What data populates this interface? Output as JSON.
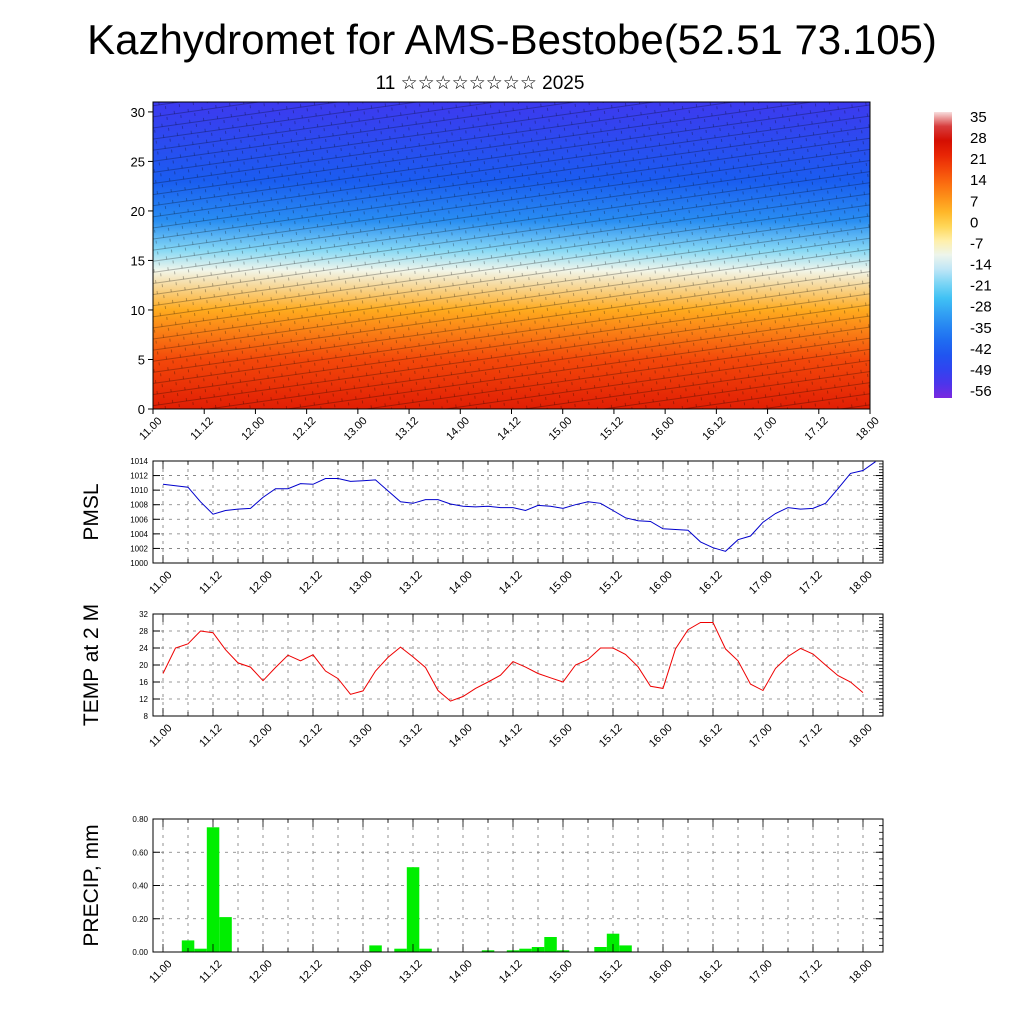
{
  "title": "Kazhydromet for AMS-Bestobe(52.51 73.105)",
  "subtitle": "11 ☆☆☆☆☆☆☆☆ 2025",
  "time_labels": [
    "11.00",
    "11.12",
    "12.00",
    "12.12",
    "13.00",
    "13.12",
    "14.00",
    "14.12",
    "15.00",
    "15.12",
    "16.00",
    "16.12",
    "17.00",
    "17.12",
    "18.00"
  ],
  "chart_data": [
    {
      "type": "heatmap",
      "title": "",
      "xlabel": "",
      "ylabel": "",
      "ylim": [
        0,
        31
      ],
      "yticks": [
        0,
        5,
        10,
        15,
        20,
        25,
        30
      ],
      "colorbar_labels": [
        "35",
        "28",
        "21",
        "14",
        "7",
        "0",
        "-7",
        "-14",
        "-21",
        "-28",
        "-35",
        "-42",
        "-49",
        "-56"
      ],
      "colorbar_range": [
        -63,
        42
      ],
      "colors": {
        "warm": "#d90000",
        "mid": "#ffffff",
        "cold": "#2222cc"
      },
      "temperature_profile": [
        {
          "height": 0,
          "value": 28
        },
        {
          "height": 5,
          "value": 21
        },
        {
          "height": 10,
          "value": 7
        },
        {
          "height": 14,
          "value": -10
        },
        {
          "height": 16,
          "value": -20
        },
        {
          "height": 19,
          "value": -35
        },
        {
          "height": 23,
          "value": -45
        },
        {
          "height": 31,
          "value": -56
        }
      ],
      "overlay": "wind barbs"
    },
    {
      "type": "line",
      "ylabel": "PMSL",
      "ylim": [
        1000,
        1014
      ],
      "yticks": [
        1000,
        1002,
        1004,
        1006,
        1008,
        1010,
        1012,
        1014
      ],
      "color": "#0000cc",
      "x_start": 0.0,
      "x_step": 0.125,
      "values": [
        1010.8,
        1010.6,
        1010.4,
        1008.4,
        1006.7,
        1007.2,
        1007.4,
        1007.5,
        1009.0,
        1010.2,
        1010.2,
        1010.9,
        1010.8,
        1011.6,
        1011.6,
        1011.2,
        1011.3,
        1011.4,
        1009.9,
        1008.4,
        1008.2,
        1008.7,
        1008.7,
        1008.1,
        1007.8,
        1007.7,
        1007.8,
        1007.6,
        1007.6,
        1007.2,
        1007.9,
        1007.8,
        1007.5,
        1008.0,
        1008.4,
        1008.2,
        1007.2,
        1006.2,
        1005.8,
        1005.7,
        1004.7,
        1004.6,
        1004.5,
        1002.9,
        1002.1,
        1001.6,
        1003.2,
        1003.7,
        1005.6,
        1006.8,
        1007.6,
        1007.4,
        1007.5,
        1008.2,
        1010.2,
        1012.3,
        1012.7,
        1013.9
      ]
    },
    {
      "type": "line",
      "ylabel": "TEMP at 2 M",
      "ylim": [
        8,
        32
      ],
      "yticks": [
        8,
        12,
        16,
        20,
        24,
        28,
        32
      ],
      "color": "#ee0000",
      "x_start": 0.0,
      "x_step": 0.125,
      "values": [
        18.0,
        24.0,
        25.0,
        28.0,
        27.6,
        23.6,
        20.5,
        19.5,
        16.3,
        19.4,
        22.3,
        21.0,
        22.4,
        18.6,
        16.8,
        13.1,
        13.9,
        18.6,
        21.8,
        24.2,
        21.9,
        19.4,
        14.0,
        11.5,
        12.6,
        14.5,
        16.0,
        17.6,
        20.8,
        19.5,
        18.0,
        17.0,
        16.0,
        20.0,
        21.3,
        24.0,
        24.0,
        22.5,
        19.6,
        15.0,
        14.5,
        23.8,
        28.3,
        30.0,
        30.0,
        23.8,
        21.0,
        15.5,
        14.0,
        19.2,
        22.0,
        23.9,
        22.6,
        20.0,
        17.5,
        16.0,
        13.5
      ]
    },
    {
      "type": "bar",
      "ylabel": "PRECIP, mm",
      "ylim": [
        0,
        0.8
      ],
      "yticks": [
        "0.00",
        "0.20",
        "0.40",
        "0.60",
        "0.80"
      ],
      "color": "#00ee00",
      "x_start": 0.125,
      "x_step": 0.125,
      "values": [
        0,
        0.07,
        0.02,
        0.75,
        0.21,
        0,
        0,
        0,
        0,
        0,
        0,
        0,
        0,
        0,
        0,
        0,
        0.04,
        0,
        0.02,
        0.51,
        0.02,
        0,
        0,
        0,
        0,
        0.01,
        0,
        0.01,
        0.02,
        0.03,
        0.09,
        0.01,
        0,
        0,
        0.03,
        0.11,
        0.04,
        0
      ]
    }
  ]
}
